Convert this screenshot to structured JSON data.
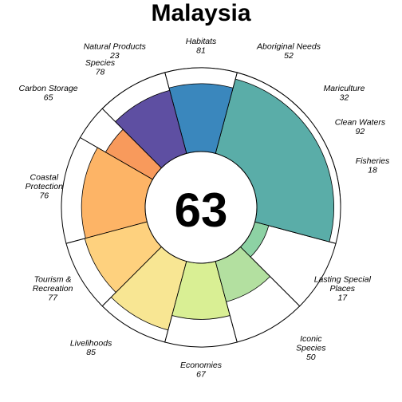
{
  "chart_data": {
    "type": "flower",
    "title": "Malaysia",
    "center_score": "63",
    "max_value": 100,
    "petals": [
      {
        "label": [
          "Fisheries"
        ],
        "value": 18,
        "color": "#9e0142",
        "angle_start": 0,
        "angle_end": 30
      },
      {
        "label": [
          "Mariculture"
        ],
        "value": 32,
        "color": "#d53e4f",
        "angle_start": 30,
        "angle_end": 60
      },
      {
        "label": [
          "Aboriginal Needs"
        ],
        "value": 52,
        "color": "#e45a4a",
        "angle_start": 60,
        "angle_end": 90
      },
      {
        "label": [
          "Natural Products"
        ],
        "value": 23,
        "color": "#f46d43",
        "angle_start": 90,
        "angle_end": 120
      },
      {
        "label": [
          "Carbon Storage"
        ],
        "value": 65,
        "color": "#f89a5c",
        "angle_start": 120,
        "angle_end": 150
      },
      {
        "label": [
          "Coastal",
          "Protection"
        ],
        "value": 76,
        "color": "#fdb466",
        "angle_start": 150,
        "angle_end": 195
      },
      {
        "label": [
          "Tourism &",
          "Recreation"
        ],
        "value": 77,
        "color": "#fed17e",
        "angle_start": 195,
        "angle_end": 225
      },
      {
        "label": [
          "Livelihoods"
        ],
        "value": 85,
        "color": "#f8e693",
        "angle_start": 225,
        "angle_end": 255
      },
      {
        "label": [
          "Economies"
        ],
        "value": 67,
        "color": "#d9ef94",
        "angle_start": 255,
        "angle_end": 285
      },
      {
        "label": [
          "Iconic",
          "Species"
        ],
        "value": 50,
        "color": "#b3e0a0",
        "angle_start": 285,
        "angle_end": 315
      },
      {
        "label": [
          "Lasting Special",
          "Places"
        ],
        "value": 17,
        "color": "#8dd2a4",
        "angle_start": 315,
        "angle_end": 345
      },
      {
        "label": [
          "Clean Waters"
        ],
        "value": 92,
        "color": "#5aada8",
        "angle_start": 345,
        "angle_end": 435
      },
      {
        "label": [
          "Habitats"
        ],
        "value": 81,
        "color": "#3a87bd",
        "angle_start": 435,
        "angle_end": 465
      },
      {
        "label": [
          "Species"
        ],
        "value": 78,
        "color": "#5e4fa2",
        "angle_start": 465,
        "angle_end": 495
      }
    ]
  }
}
